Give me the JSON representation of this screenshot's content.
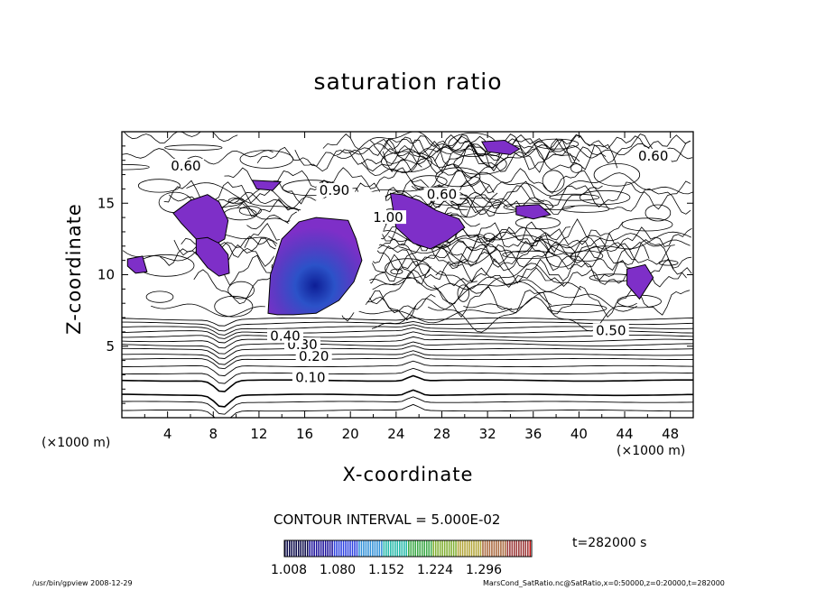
{
  "chart_data": {
    "type": "heatmap",
    "title": "saturation ratio",
    "xlabel": "X-coordinate",
    "ylabel": "Z-coordinate",
    "x_unit": "(×1000 m)",
    "xlim": [
      0,
      50
    ],
    "ylim": [
      0,
      20
    ],
    "xticks": [
      4,
      8,
      12,
      16,
      20,
      24,
      28,
      32,
      36,
      40,
      44,
      48
    ],
    "yticks": [
      5,
      10,
      15
    ],
    "contour_interval": "CONTOUR INTERVAL = 5.000E-02",
    "contour_labels": [
      {
        "text": "0.10",
        "x": 16.5,
        "y": 2.8
      },
      {
        "text": "0.20",
        "x": 16.8,
        "y": 4.3
      },
      {
        "text": "0.30",
        "x": 15.8,
        "y": 5.1
      },
      {
        "text": "0.40",
        "x": 14.3,
        "y": 5.7
      },
      {
        "text": "0.50",
        "x": 42.8,
        "y": 6.1
      },
      {
        "text": "0.60",
        "x": 5.6,
        "y": 17.6
      },
      {
        "text": "0.90",
        "x": 18.6,
        "y": 15.9
      },
      {
        "text": "0.60",
        "x": 28.0,
        "y": 15.6
      },
      {
        "text": "0.60",
        "x": 46.5,
        "y": 18.3
      },
      {
        "text": "1.00",
        "x": 23.3,
        "y": 14.0
      }
    ],
    "supersaturated_regions": [
      {
        "x": [
          12.8,
          13,
          14,
          15.5,
          17,
          18.5,
          19.8,
          20.5,
          21,
          20.3,
          19,
          17,
          15,
          13.6,
          12.8
        ],
        "y": [
          7.3,
          10,
          12.5,
          13.7,
          14,
          13.9,
          13.8,
          12.5,
          11,
          9.5,
          8.2,
          7.3,
          7.2,
          7.2,
          7.3
        ],
        "core": [
          15.5,
          8.5
        ]
      },
      {
        "x": [
          23.5,
          24.5,
          26,
          27.5,
          29.5,
          30,
          28.5,
          27,
          25.5,
          24,
          23.5
        ],
        "y": [
          15.7,
          15.6,
          15.2,
          14.5,
          13.9,
          13.3,
          12.4,
          11.8,
          12.2,
          13.3,
          15.7
        ]
      },
      {
        "x": [
          4.5,
          6,
          7.5,
          8.5,
          9.3,
          9,
          7.5,
          6.5,
          5.2,
          4.5
        ],
        "y": [
          14.3,
          15.2,
          15.6,
          15.1,
          13.8,
          12.5,
          11.8,
          12.5,
          13.6,
          14.3
        ]
      },
      {
        "x": [
          6.5,
          7.5,
          8.5,
          9.3,
          9.4,
          8.5,
          7.5,
          6.5
        ],
        "y": [
          12.5,
          12.6,
          12.2,
          11.4,
          10.1,
          9.9,
          10.5,
          11.5
        ]
      },
      {
        "x": [
          31.5,
          33.5,
          34.8,
          34,
          32,
          31.5
        ],
        "y": [
          19.3,
          19.4,
          18.8,
          18.4,
          18.6,
          19.3
        ]
      },
      {
        "x": [
          34.5,
          36.5,
          37.5,
          36,
          34.5
        ],
        "y": [
          14.8,
          14.9,
          14.2,
          13.9,
          14.2
        ]
      },
      {
        "x": [
          44.2,
          45.8,
          46.5,
          45.3,
          44.2
        ],
        "y": [
          10.4,
          10.7,
          9.8,
          8.3,
          9.3
        ]
      },
      {
        "x": [
          0.5,
          1.8,
          2.2,
          1.2,
          0.5
        ],
        "y": [
          11.1,
          11.3,
          10.2,
          10.1,
          10.6
        ]
      },
      {
        "x": [
          11.4,
          13.9,
          13.2,
          11.8,
          11.4
        ],
        "y": [
          16.6,
          16.5,
          15.9,
          16.0,
          16.6
        ]
      }
    ],
    "colorbar": {
      "ticks": [
        "1.008",
        "1.080",
        "1.152",
        "1.224",
        "1.296"
      ],
      "range": [
        1.008,
        1.296
      ],
      "colors": [
        "#0b0a4a",
        "#1a0f9a",
        "#2a3fe0",
        "#2e8fd8",
        "#21b8a8",
        "#3aa845",
        "#7fae2f",
        "#b0a334",
        "#a8663a",
        "#9a3535",
        "#d01818"
      ]
    }
  },
  "time_label": "t=282000 s",
  "footer_left": "/usr/bin/gpview 2008-12-29",
  "footer_right": "MarsCond_SatRatio.nc@SatRatio,x=0:50000,z=0:20000,t=282000",
  "colors": {
    "fill": "#7e2fc8",
    "core": "#1f2ea8",
    "line": "#000000"
  }
}
